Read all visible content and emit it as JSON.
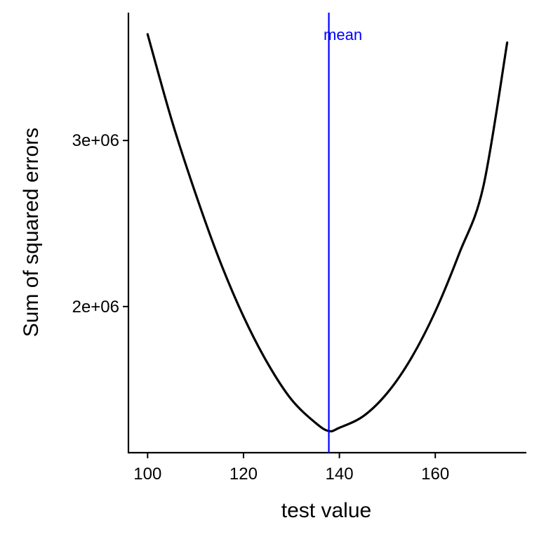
{
  "chart_data": {
    "type": "line",
    "title": "",
    "xlabel": "test value",
    "ylabel": "Sum of squared errors",
    "xlim": [
      96,
      179
    ],
    "ylim": [
      1120000,
      3770000
    ],
    "x_ticks": [
      100,
      120,
      140,
      160
    ],
    "x_tick_labels": [
      "100",
      "120",
      "140",
      "160"
    ],
    "y_ticks": [
      2000000,
      3000000
    ],
    "y_tick_labels": [
      "2e+06",
      "3e+06"
    ],
    "grid": false,
    "legend": "none",
    "series": [
      {
        "color": "#000000",
        "x": [
          100,
          105,
          110,
          115,
          120,
          125,
          130,
          135,
          137.8,
          140,
          145,
          150,
          155,
          160,
          165,
          170,
          175
        ],
        "y": [
          3640000,
          3125000,
          2680000,
          2280000,
          1940000,
          1660000,
          1440000,
          1300000,
          1250000,
          1270000,
          1340000,
          1480000,
          1690000,
          1970000,
          2320000,
          2720000,
          3590000
        ]
      }
    ],
    "annotations": [
      {
        "type": "vline",
        "x": 137.8,
        "label": "mean",
        "color": "#0000ff"
      }
    ]
  }
}
